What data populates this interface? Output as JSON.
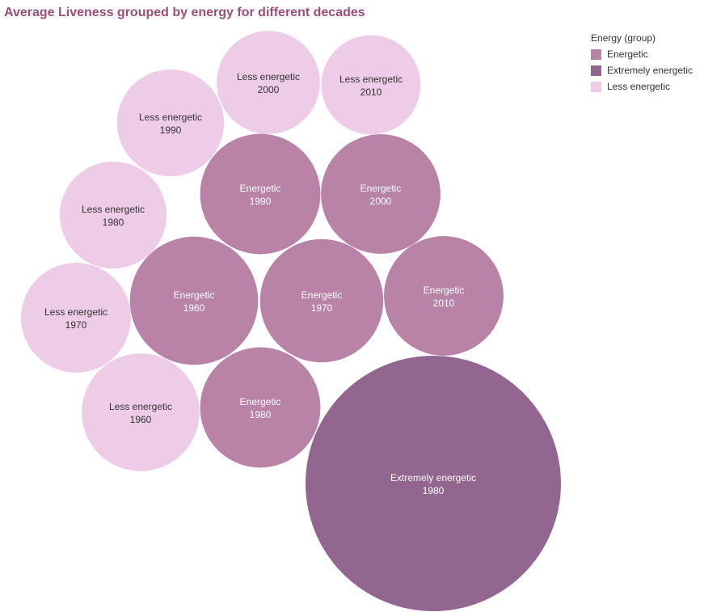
{
  "colors": {
    "Energetic": "#b883a6",
    "Extremely energetic": "#93668f",
    "Less energetic": "#eecbe6",
    "title": "#9a4d78",
    "label_dark": "#333333",
    "label_light": "#ffffff"
  },
  "chart_data": {
    "type": "packed-bubble",
    "title": "Average Liveness grouped by energy for different decades",
    "legend": {
      "title": "Energy (group)",
      "placement": "top-right",
      "entries": [
        "Energetic",
        "Extremely energetic",
        "Less energetic"
      ]
    },
    "bubbles": [
      {
        "group": "Extremely energetic",
        "decade": "1980",
        "size": 1.0
      },
      {
        "group": "Energetic",
        "decade": "1960",
        "size": 0.252
      },
      {
        "group": "Energetic",
        "decade": "1970",
        "size": 0.233
      },
      {
        "group": "Energetic",
        "decade": "1980",
        "size": 0.222
      },
      {
        "group": "Energetic",
        "decade": "1990",
        "size": 0.222
      },
      {
        "group": "Energetic",
        "decade": "2000",
        "size": 0.219
      },
      {
        "group": "Energetic",
        "decade": "2010",
        "size": 0.219
      },
      {
        "group": "Less energetic",
        "decade": "1960",
        "size": 0.212
      },
      {
        "group": "Less energetic",
        "decade": "1970",
        "size": 0.185
      },
      {
        "group": "Less energetic",
        "decade": "1980",
        "size": 0.175
      },
      {
        "group": "Less energetic",
        "decade": "1990",
        "size": 0.175
      },
      {
        "group": "Less energetic",
        "decade": "2000",
        "size": 0.163
      },
      {
        "group": "Less energetic",
        "decade": "2010",
        "size": 0.151
      }
    ]
  }
}
